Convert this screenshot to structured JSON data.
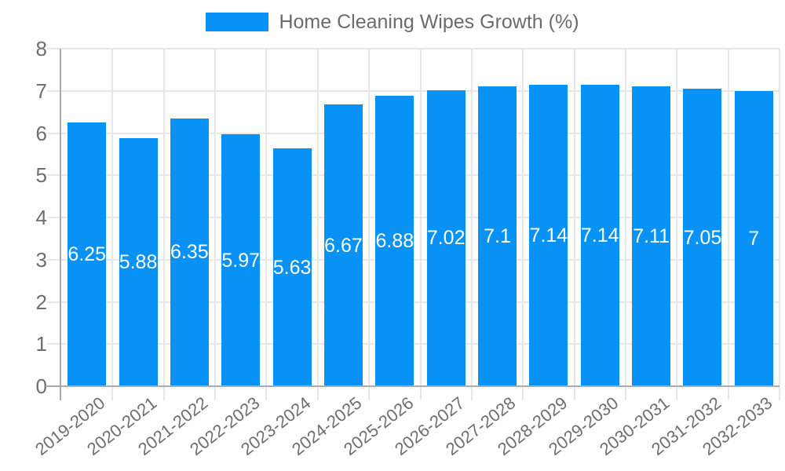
{
  "legend": {
    "label": "Home Cleaning Wipes Growth (%)"
  },
  "chart_data": {
    "type": "bar",
    "title": "Home Cleaning Wipes Growth (%)",
    "categories": [
      "2019-2020",
      "2020-2021",
      "2021-2022",
      "2022-2023",
      "2023-2024",
      "2024-2025",
      "2025-2026",
      "2026-2027",
      "2027-2028",
      "2028-2029",
      "2029-2030",
      "2030-2031",
      "2031-2032",
      "2032-2033"
    ],
    "values": [
      6.25,
      5.88,
      6.35,
      5.97,
      5.63,
      6.67,
      6.88,
      7.02,
      7.1,
      7.14,
      7.14,
      7.11,
      7.05,
      7
    ],
    "bar_labels": [
      "6.25",
      "5.88",
      "6.35",
      "5.97",
      "5.63",
      "6.67",
      "6.88",
      "7.02",
      "7.1",
      "7.14",
      "7.14",
      "7.11",
      "7.05",
      "7"
    ],
    "xlabel": "",
    "ylabel": "",
    "ylim": [
      0,
      8
    ],
    "ytick_labels": [
      "0",
      "1",
      "2",
      "3",
      "4",
      "5",
      "6",
      "7",
      "8"
    ],
    "grid": true,
    "legend_position": "top",
    "bar_color": "#0992f6",
    "value_label_color": "#ffffff",
    "axis_line_color": "#ababab",
    "gridline_color": "#e7e7e7",
    "tick_label_color": "#6e6e6e"
  }
}
